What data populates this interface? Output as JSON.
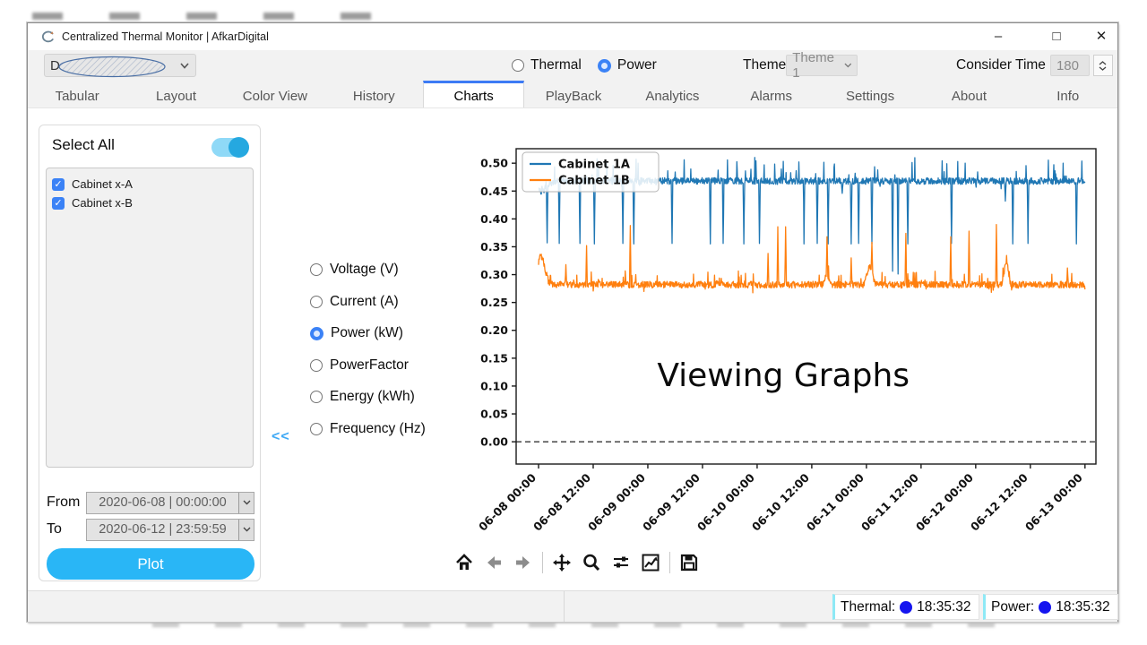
{
  "window": {
    "title": "Centralized Thermal Monitor | AfkarDigital",
    "controls": {
      "minimize": "–",
      "maximize": "□",
      "close": "✕"
    }
  },
  "toolbar": {
    "device_dropdown_text": "D",
    "mode_options": [
      {
        "label": "Thermal",
        "selected": false
      },
      {
        "label": "Power",
        "selected": true
      }
    ],
    "theme_label": "Theme",
    "theme_value": "Theme 1",
    "consider_time_label": "Consider Time",
    "consider_time_value": "180"
  },
  "tabs": [
    {
      "label": "Tabular",
      "active": false
    },
    {
      "label": "Layout",
      "active": false
    },
    {
      "label": "Color View",
      "active": false
    },
    {
      "label": "History",
      "active": false
    },
    {
      "label": "Charts",
      "active": true
    },
    {
      "label": "PlayBack",
      "active": false
    },
    {
      "label": "Analytics",
      "active": false
    },
    {
      "label": "Alarms",
      "active": false
    },
    {
      "label": "Settings",
      "active": false
    },
    {
      "label": "About",
      "active": false
    },
    {
      "label": "Info",
      "active": false
    }
  ],
  "sidebar": {
    "select_all_label": "Select All",
    "select_all_on": true,
    "check_glyph": "✓",
    "cabinets": [
      {
        "label": "Cabinet x-A",
        "checked": true
      },
      {
        "label": "Cabinet x-B",
        "checked": true
      }
    ],
    "from_label": "From",
    "from_value": "2020-06-08 | 00:00:00",
    "to_label": "To",
    "to_value": "2020-06-12 | 23:59:59",
    "plot_label": "Plot",
    "collapse_label": "<<"
  },
  "measurements": [
    {
      "label": "Voltage (V)",
      "selected": false
    },
    {
      "label": "Current (A)",
      "selected": false
    },
    {
      "label": "Power (kW)",
      "selected": true
    },
    {
      "label": "PowerFactor",
      "selected": false
    },
    {
      "label": "Energy (kWh)",
      "selected": false
    },
    {
      "label": "Frequency (Hz)",
      "selected": false
    }
  ],
  "chart_data": {
    "type": "line",
    "annotation": "Viewing Graphs",
    "annotation_pos": {
      "t": 2.24,
      "v": 0.1
    },
    "x_tick_labels": [
      "06-08 00:00",
      "06-08 12:00",
      "06-09 00:00",
      "06-09 12:00",
      "06-10 00:00",
      "06-10 12:00",
      "06-11 00:00",
      "06-11 12:00",
      "06-12 00:00",
      "06-12 12:00",
      "06-13 00:00"
    ],
    "x_tick_days": [
      0,
      0.5,
      1,
      1.5,
      2,
      2.5,
      3,
      3.5,
      4,
      4.5,
      5
    ],
    "y_tick_labels": [
      "0.00",
      "0.05",
      "0.10",
      "0.15",
      "0.20",
      "0.25",
      "0.30",
      "0.35",
      "0.40",
      "0.45",
      "0.50"
    ],
    "y_tick_values": [
      0,
      0.05,
      0.1,
      0.15,
      0.2,
      0.25,
      0.3,
      0.35,
      0.4,
      0.45,
      0.5
    ],
    "xlim_days": [
      -0.205,
      5.1
    ],
    "ylim": [
      -0.04,
      0.526
    ],
    "zero_line_dashed": true,
    "legend_position": "upper-left",
    "series": [
      {
        "name": "Cabinet 1A",
        "color": "#1f77b4",
        "seed": 42,
        "baseline": 0.468,
        "noise": 0.006,
        "up_spike_prob": 0.07,
        "up_spike_max": 0.042,
        "bumps": [
          [
            -0.1,
            0.15,
            -0.018
          ]
        ],
        "events": [
          [
            0.05,
            0.447
          ],
          [
            0.08,
            0.357
          ],
          [
            0.19,
            0.356
          ],
          [
            0.38,
            0.356
          ],
          [
            0.51,
            0.355
          ],
          [
            0.77,
            0.356
          ],
          [
            0.87,
            0.355
          ],
          [
            1.22,
            0.356
          ],
          [
            1.57,
            0.355
          ],
          [
            1.69,
            0.356
          ],
          [
            1.88,
            0.355
          ],
          [
            2.02,
            0.356
          ],
          [
            2.43,
            0.355
          ],
          [
            2.55,
            0.356
          ],
          [
            2.65,
            0.355
          ],
          [
            2.78,
            0.446
          ],
          [
            2.86,
            0.355
          ],
          [
            2.93,
            0.356
          ],
          [
            3.05,
            0.355
          ],
          [
            3.24,
            0.306
          ],
          [
            3.29,
            0.301
          ],
          [
            3.38,
            0.355
          ],
          [
            3.78,
            0.356
          ],
          [
            4.27,
            0.432
          ],
          [
            4.34,
            0.355
          ],
          [
            4.48,
            0.356
          ],
          [
            4.92,
            0.355
          ]
        ]
      },
      {
        "name": "Cabinet 1B",
        "color": "#ff7f0e",
        "seed": 7,
        "baseline": 0.282,
        "noise": 0.006,
        "up_spike_prob": 0.05,
        "up_spike_max": 0.024,
        "bumps": [
          [
            -0.06,
            0.1,
            0.055
          ],
          [
            2.6,
            2.68,
            0.02
          ],
          [
            2.98,
            3.08,
            0.035
          ],
          [
            4.24,
            4.32,
            0.045
          ]
        ],
        "events": [
          [
            0.02,
            0.335
          ],
          [
            0.25,
            0.318
          ],
          [
            0.44,
            0.352
          ],
          [
            0.84,
            0.388
          ],
          [
            2.1,
            0.338
          ],
          [
            2.19,
            0.386
          ],
          [
            2.26,
            0.386
          ],
          [
            2.64,
            0.368
          ],
          [
            2.86,
            0.33
          ],
          [
            3.05,
            0.358
          ],
          [
            3.36,
            0.374
          ],
          [
            3.77,
            0.368
          ],
          [
            3.94,
            0.378
          ],
          [
            4.19,
            0.39
          ],
          [
            4.84,
            0.312
          ]
        ]
      }
    ]
  },
  "statusbar": {
    "thermal_label": "Thermal:",
    "thermal_time": "18:35:32",
    "power_label": "Power:",
    "power_time": "18:35:32"
  },
  "colors": {
    "accent_blue": "#29b6f6",
    "radio_blue": "#3b82f6",
    "tab_indicator": "#3d7bf5",
    "series_1a": "#1f77b4",
    "series_1b": "#ff7f0e",
    "status_dot": "#1515ef",
    "collapse_blue": "#3fa9f5"
  }
}
